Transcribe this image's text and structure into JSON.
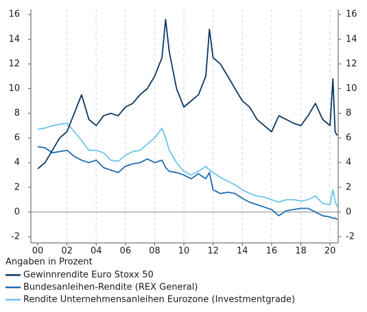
{
  "chart_data": {
    "type": "line",
    "note": "Angaben in Prozent",
    "x": [
      2000,
      2000.5,
      2001,
      2001.5,
      2002,
      2002.5,
      2003,
      2003.5,
      2004,
      2004.5,
      2005,
      2005.5,
      2006,
      2006.5,
      2007,
      2007.5,
      2008,
      2008.5,
      2008.75,
      2009,
      2009.5,
      2010,
      2010.5,
      2011,
      2011.5,
      2011.75,
      2012,
      2012.5,
      2013,
      2013.5,
      2014,
      2014.5,
      2015,
      2015.5,
      2016,
      2016.5,
      2017,
      2017.5,
      2018,
      2018.5,
      2019,
      2019.5,
      2020,
      2020.2,
      2020.35,
      2020.5
    ],
    "series": [
      {
        "name": "Gewinnrendite Euro Stoxx 50",
        "color": "#0b3560",
        "values": [
          3.5,
          4,
          5,
          6,
          6.5,
          8,
          9.5,
          7.5,
          7,
          7.8,
          8,
          7.8,
          8.5,
          8.8,
          9.5,
          10,
          11,
          12.5,
          15.6,
          13,
          10,
          8.5,
          9,
          9.5,
          11,
          14.8,
          12.5,
          12,
          11,
          10,
          9,
          8.5,
          7.5,
          7,
          6.5,
          7.8,
          7.5,
          7.2,
          7,
          7.8,
          8.8,
          7.5,
          7,
          10.8,
          6.5,
          6.2
        ]
      },
      {
        "name": "Bundesanleihen-Rendite (REX General)",
        "color": "#1a6db3",
        "values": [
          5.3,
          5.2,
          4.8,
          4.9,
          5,
          4.5,
          4.2,
          4,
          4.2,
          3.6,
          3.4,
          3.2,
          3.7,
          3.9,
          4,
          4.3,
          4,
          4.2,
          3.6,
          3.3,
          3.2,
          3,
          2.7,
          3.1,
          2.7,
          3.2,
          1.8,
          1.5,
          1.6,
          1.5,
          1.1,
          0.8,
          0.6,
          0.4,
          0.2,
          -0.3,
          0.1,
          0.2,
          0.3,
          0.3,
          0,
          -0.3,
          -0.4,
          -0.5,
          -0.5,
          -0.6
        ]
      },
      {
        "name": "Rendite Unternehmensanleihen Eurozone (Investmentgrade)",
        "color": "#6cc3ea",
        "values": [
          6.7,
          6.8,
          7,
          7.1,
          7.2,
          6.5,
          5.8,
          5,
          5,
          4.8,
          4.2,
          4.1,
          4.6,
          4.9,
          5,
          5.5,
          6,
          6.8,
          6,
          5,
          4,
          3.3,
          3,
          3.3,
          3.7,
          3.4,
          3.2,
          2.8,
          2.5,
          2.2,
          1.8,
          1.5,
          1.3,
          1.2,
          1,
          0.8,
          1,
          1,
          0.9,
          1,
          1.3,
          0.7,
          0.6,
          1.8,
          0.9,
          0.4
        ]
      }
    ],
    "xlim": [
      1999.53,
      2020.56
    ],
    "xticks": [
      {
        "value": 2000,
        "label": "00"
      },
      {
        "value": 2002,
        "label": "02"
      },
      {
        "value": 2004,
        "label": "04"
      },
      {
        "value": 2006,
        "label": "06"
      },
      {
        "value": 2008,
        "label": "08"
      },
      {
        "value": 2010,
        "label": "10"
      },
      {
        "value": 2012,
        "label": "12"
      },
      {
        "value": 2014,
        "label": "14"
      },
      {
        "value": 2016,
        "label": "16"
      },
      {
        "value": 2018,
        "label": "18"
      },
      {
        "value": 2020,
        "label": "20"
      }
    ],
    "ylim": [
      -2.5,
      16.4
    ],
    "yticks": [
      -2,
      0,
      2,
      4,
      6,
      8,
      10,
      12,
      14,
      16
    ],
    "y2lim": [
      -2.5,
      16.4
    ],
    "y2ticks": [
      -2,
      0,
      2,
      4,
      6,
      8,
      10,
      12,
      14,
      16
    ]
  }
}
